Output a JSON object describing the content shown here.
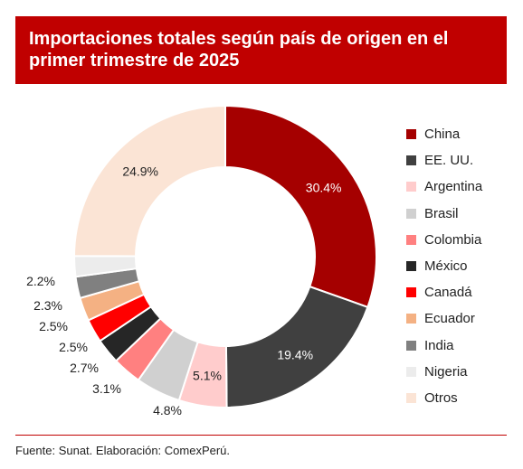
{
  "title": "Importaciones totales según país de origen en el primer trimestre de 2025",
  "source": "Fuente: Sunat. Elaboración: ComexPerú.",
  "chart_data": {
    "type": "pie",
    "donut": true,
    "legend_position": "right",
    "categories": [
      "China",
      "EE. UU.",
      "Argentina",
      "Brasil",
      "Colombia",
      "México",
      "Canadá",
      "Ecuador",
      "India",
      "Nigeria",
      "Otros"
    ],
    "values": [
      30.4,
      19.4,
      5.1,
      4.8,
      3.1,
      2.7,
      2.5,
      2.5,
      2.3,
      2.2,
      24.9
    ],
    "labels": [
      "30.4%",
      "19.4%",
      "5.1%",
      "4.8%",
      "3.1%",
      "2.7%",
      "2.5%",
      "2.5%",
      "2.3%",
      "2.2%",
      "24.9%"
    ],
    "colors": [
      "#a50000",
      "#404040",
      "#ffcccc",
      "#d0d0d0",
      "#ff8080",
      "#262626",
      "#ff0000",
      "#f4b183",
      "#808080",
      "#ececec",
      "#fbe4d5"
    ]
  }
}
